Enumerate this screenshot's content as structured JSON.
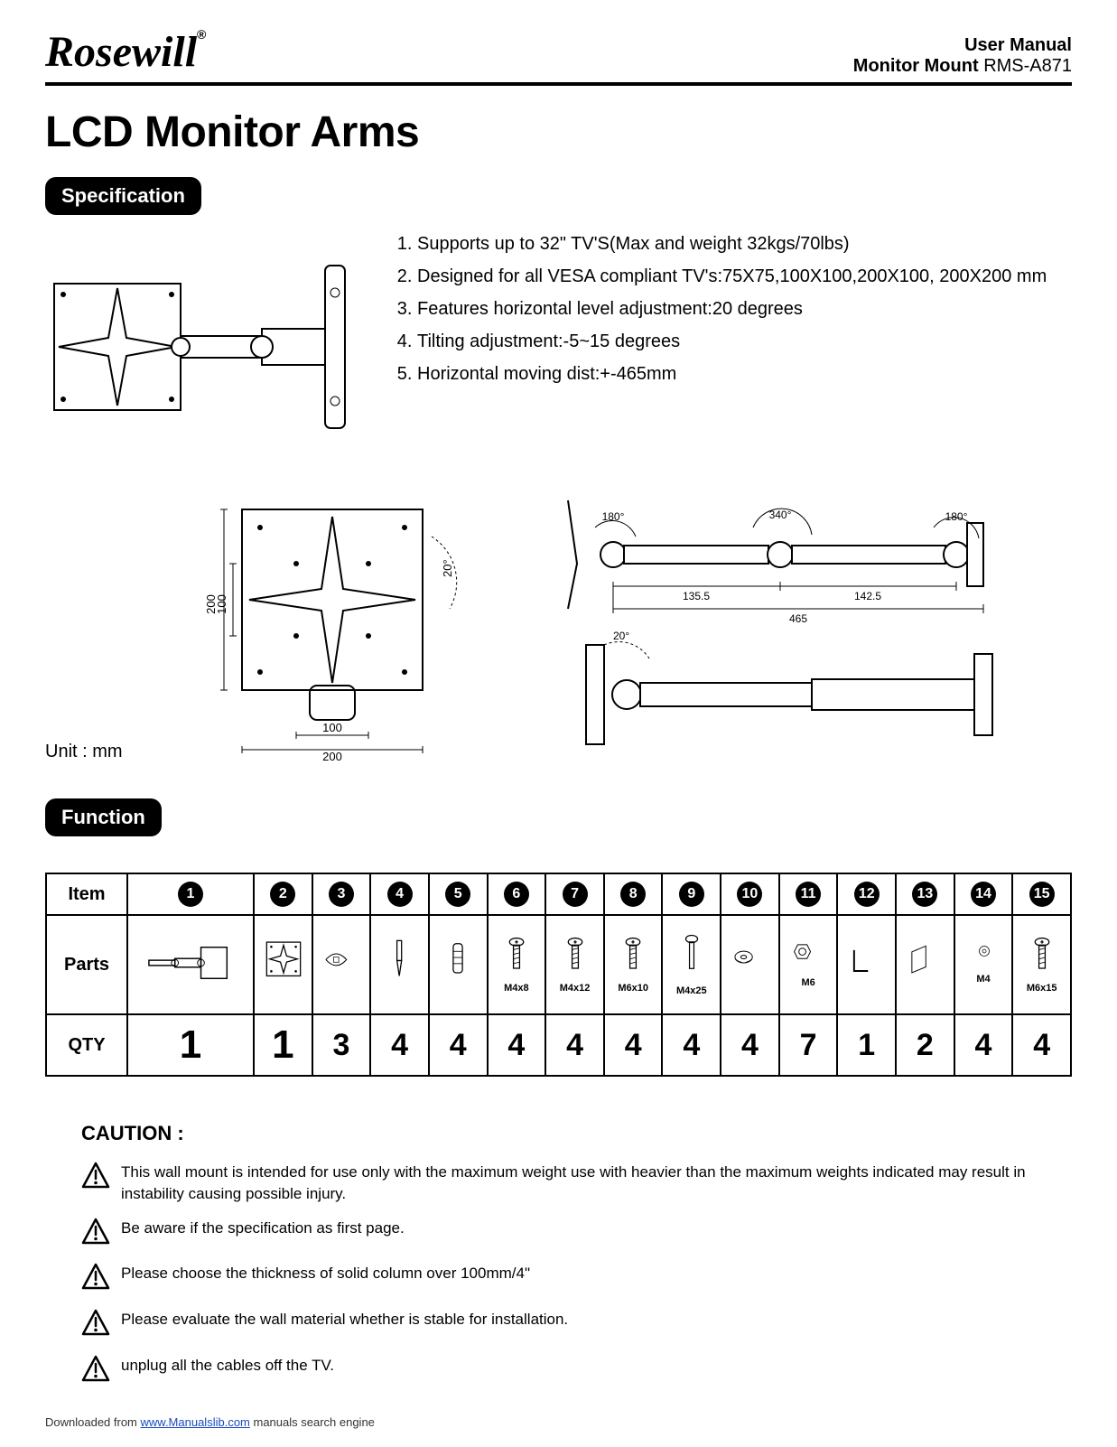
{
  "header": {
    "brand": "Rosewill",
    "brand_mark": "®",
    "manual_label": "User Manual",
    "product_bold": "Monitor Mount",
    "product_model": "RMS-A871"
  },
  "title": "LCD Monitor Arms",
  "spec": {
    "badge": "Specification",
    "items": [
      "Supports up to 32\" TV'S(Max and weight 32kgs/70lbs)",
      "Designed for all VESA compliant TV's:75X75,100X100,200X100, 200X200 mm",
      "Features horizontal level adjustment:20 degrees",
      "Tilting adjustment:-5~15 degrees",
      "Horizontal moving dist:+-465mm"
    ],
    "unit_label": "Unit : mm",
    "dim_labels": {
      "plate_200": "200",
      "plate_100": "100",
      "rot_20": "20°",
      "angle_180a": "180°",
      "angle_340": "340°",
      "angle_180b": "180°",
      "seg_135": "135.5",
      "seg_142": "142.5",
      "total_465": "465"
    }
  },
  "func": {
    "badge": "Function",
    "headers": {
      "item": "Item",
      "parts": "Parts",
      "qty": "QTY"
    },
    "items": [
      {
        "n": "1",
        "part": "arm-asm",
        "label": "",
        "qty": "1"
      },
      {
        "n": "2",
        "part": "plate",
        "label": "",
        "qty": "1"
      },
      {
        "n": "3",
        "part": "tie",
        "label": "",
        "qty": "3"
      },
      {
        "n": "4",
        "part": "driver",
        "label": "",
        "qty": "4"
      },
      {
        "n": "5",
        "part": "anchor",
        "label": "",
        "qty": "4"
      },
      {
        "n": "6",
        "part": "screw",
        "label": "M4x8",
        "qty": "4"
      },
      {
        "n": "7",
        "part": "screw",
        "label": "M4x12",
        "qty": "4"
      },
      {
        "n": "8",
        "part": "screw",
        "label": "M6x10",
        "qty": "4"
      },
      {
        "n": "9",
        "part": "bolt",
        "label": "M4x25",
        "qty": "4"
      },
      {
        "n": "10",
        "part": "washer-big",
        "label": "",
        "qty": "4"
      },
      {
        "n": "11",
        "part": "nut",
        "label": "M6",
        "qty": "7"
      },
      {
        "n": "12",
        "part": "hexkey",
        "label": "",
        "qty": "1"
      },
      {
        "n": "13",
        "part": "spacer-plate",
        "label": "",
        "qty": "2"
      },
      {
        "n": "14",
        "part": "washer",
        "label": "M4",
        "qty": "4"
      },
      {
        "n": "15",
        "part": "screw",
        "label": "M6x15",
        "qty": "4"
      }
    ]
  },
  "caution": {
    "title": "CAUTION :",
    "items": [
      "This wall mount is intended for use only with the maximum weight use with heavier than the maximum weights indicated may result in instability causing possible injury.",
      "Be aware if the specification as first page.",
      "Please choose the thickness of solid column over 100mm/4\"",
      "Please evaluate the wall material whether is stable for installation.",
      "unplug all the cables off the TV."
    ]
  },
  "footer": {
    "prefix": "Downloaded from ",
    "link": "www.Manualslib.com",
    "suffix": " manuals search engine"
  },
  "colors": {
    "border": "#000000",
    "bg": "#ffffff",
    "link": "#1a4bbd"
  }
}
